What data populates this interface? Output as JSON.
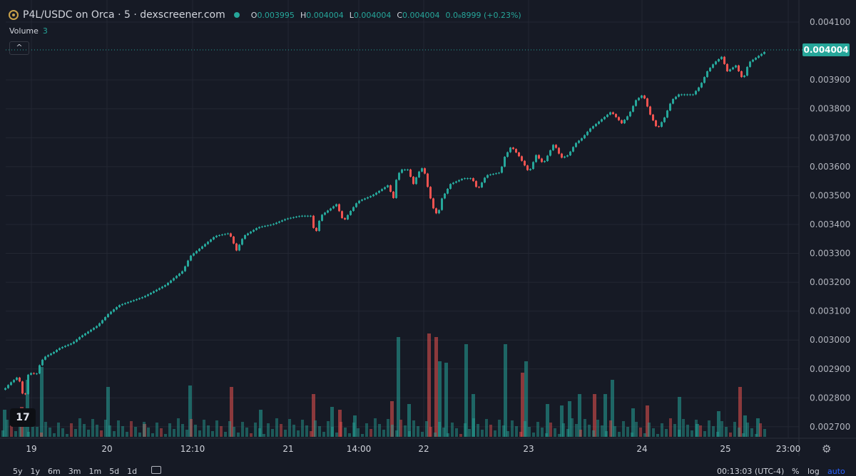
{
  "header": {
    "pair_title": "P4L/USDC on Orca · 5 · dexscreener.com",
    "open_label": "O",
    "open_value": "0.003995",
    "high_label": "H",
    "high_value": "0.004004",
    "low_label": "L",
    "low_value": "0.004004",
    "close_label": "C",
    "close_value": "0.004004",
    "change_value": "0.0₈8999 (+0.23%)",
    "volume_label": "Volume",
    "volume_value": "3",
    "collapse_symbol": "^"
  },
  "logo_text": "17",
  "last_price_label": "0.004004",
  "bottom": {
    "periods": [
      "5y",
      "1y",
      "6m",
      "3m",
      "1m",
      "5d",
      "1d"
    ],
    "clock": "00:13:03 (UTC-4)",
    "percent": "%",
    "log": "log",
    "auto": "auto"
  },
  "colors": {
    "up": "#26a69a",
    "down": "#ef5350",
    "background": "#161a25",
    "grid": "#232733"
  },
  "chart_data": {
    "type": "candlestick",
    "y_ticks": [
      "0.004100",
      "0.003900",
      "0.003800",
      "0.003700",
      "0.003600",
      "0.003500",
      "0.003400",
      "0.003300",
      "0.003200",
      "0.003100",
      "0.003000",
      "0.002900",
      "0.002800",
      "0.002700"
    ],
    "x_ticks": [
      "19",
      "20",
      "12:10",
      "21",
      "14:00",
      "22",
      "23",
      "24",
      "25",
      "23:00"
    ],
    "ylim": [
      0.00268,
      0.00411
    ],
    "last_price": 0.004004,
    "points": [
      [
        1,
        0.00282
      ],
      [
        12,
        0.00285
      ],
      [
        22,
        0.00287
      ],
      [
        28,
        0.00285
      ],
      [
        32,
        0.00278
      ],
      [
        38,
        0.00288
      ],
      [
        45,
        0.00289
      ],
      [
        48,
        0.00287
      ],
      [
        55,
        0.00292
      ],
      [
        60,
        0.00294
      ],
      [
        75,
        0.00296
      ],
      [
        80,
        0.00297
      ],
      [
        100,
        0.00299
      ],
      [
        110,
        0.00301
      ],
      [
        135,
        0.00305
      ],
      [
        150,
        0.00309
      ],
      [
        165,
        0.00312
      ],
      [
        200,
        0.00315
      ],
      [
        230,
        0.00319
      ],
      [
        255,
        0.00324
      ],
      [
        265,
        0.00329
      ],
      [
        285,
        0.00333
      ],
      [
        300,
        0.00336
      ],
      [
        320,
        0.00337
      ],
      [
        330,
        0.00331
      ],
      [
        340,
        0.00336
      ],
      [
        360,
        0.00339
      ],
      [
        380,
        0.0034
      ],
      [
        400,
        0.00342
      ],
      [
        420,
        0.00343
      ],
      [
        435,
        0.00343
      ],
      [
        440,
        0.00336
      ],
      [
        448,
        0.00343
      ],
      [
        470,
        0.00347
      ],
      [
        480,
        0.00341
      ],
      [
        488,
        0.00344
      ],
      [
        500,
        0.00348
      ],
      [
        520,
        0.0035
      ],
      [
        545,
        0.00354
      ],
      [
        548,
        0.00346
      ],
      [
        555,
        0.00357
      ],
      [
        562,
        0.00359
      ],
      [
        570,
        0.00359
      ],
      [
        578,
        0.00354
      ],
      [
        585,
        0.00358
      ],
      [
        592,
        0.0036
      ],
      [
        597,
        0.00354
      ],
      [
        605,
        0.00346
      ],
      [
        612,
        0.00343
      ],
      [
        618,
        0.00349
      ],
      [
        630,
        0.00354
      ],
      [
        648,
        0.00356
      ],
      [
        660,
        0.00356
      ],
      [
        668,
        0.00352
      ],
      [
        680,
        0.00357
      ],
      [
        700,
        0.00358
      ],
      [
        705,
        0.00363
      ],
      [
        715,
        0.00367
      ],
      [
        725,
        0.00364
      ],
      [
        740,
        0.00358
      ],
      [
        750,
        0.00364
      ],
      [
        760,
        0.00361
      ],
      [
        775,
        0.00368
      ],
      [
        785,
        0.00363
      ],
      [
        795,
        0.00364
      ],
      [
        805,
        0.00368
      ],
      [
        815,
        0.0037
      ],
      [
        825,
        0.00373
      ],
      [
        835,
        0.00375
      ],
      [
        845,
        0.00377
      ],
      [
        855,
        0.00379
      ],
      [
        870,
        0.00375
      ],
      [
        880,
        0.00378
      ],
      [
        890,
        0.00383
      ],
      [
        900,
        0.00385
      ],
      [
        910,
        0.00378
      ],
      [
        920,
        0.00373
      ],
      [
        930,
        0.00377
      ],
      [
        940,
        0.00383
      ],
      [
        950,
        0.00385
      ],
      [
        960,
        0.00385
      ],
      [
        970,
        0.00385
      ],
      [
        980,
        0.00388
      ],
      [
        990,
        0.00393
      ],
      [
        1000,
        0.00396
      ],
      [
        1010,
        0.00398
      ],
      [
        1018,
        0.00393
      ],
      [
        1030,
        0.00395
      ],
      [
        1040,
        0.0039
      ],
      [
        1048,
        0.00396
      ],
      [
        1060,
        0.00398
      ],
      [
        1072,
        0.004
      ]
    ],
    "volume_bars": [
      [
        4,
        38,
        "up"
      ],
      [
        28,
        42,
        "down"
      ],
      [
        36,
        80,
        "up"
      ],
      [
        56,
        98,
        "up"
      ],
      [
        149,
        70,
        "up"
      ],
      [
        200,
        18,
        "down"
      ],
      [
        264,
        72,
        "up"
      ],
      [
        322,
        70,
        "down"
      ],
      [
        363,
        38,
        "up"
      ],
      [
        437,
        60,
        "down"
      ],
      [
        463,
        42,
        "up"
      ],
      [
        474,
        38,
        "down"
      ],
      [
        495,
        30,
        "up"
      ],
      [
        556,
        140,
        "up"
      ],
      [
        547,
        50,
        "down"
      ],
      [
        571,
        46,
        "up"
      ],
      [
        599,
        145,
        "down"
      ],
      [
        609,
        140,
        "down"
      ],
      [
        614,
        106,
        "up"
      ],
      [
        623,
        104,
        "up"
      ],
      [
        651,
        130,
        "up"
      ],
      [
        661,
        60,
        "up"
      ],
      [
        706,
        130,
        "up"
      ],
      [
        730,
        90,
        "down"
      ],
      [
        735,
        106,
        "up"
      ],
      [
        765,
        46,
        "up"
      ],
      [
        785,
        44,
        "up"
      ],
      [
        796,
        50,
        "up"
      ],
      [
        810,
        60,
        "up"
      ],
      [
        831,
        60,
        "down"
      ],
      [
        846,
        60,
        "up"
      ],
      [
        856,
        80,
        "up"
      ],
      [
        885,
        40,
        "up"
      ],
      [
        905,
        44,
        "down"
      ],
      [
        950,
        56,
        "up"
      ],
      [
        975,
        18,
        "up"
      ],
      [
        1005,
        36,
        "up"
      ],
      [
        1035,
        70,
        "down"
      ],
      [
        1042,
        30,
        "up"
      ],
      [
        1060,
        26,
        "up"
      ]
    ]
  }
}
